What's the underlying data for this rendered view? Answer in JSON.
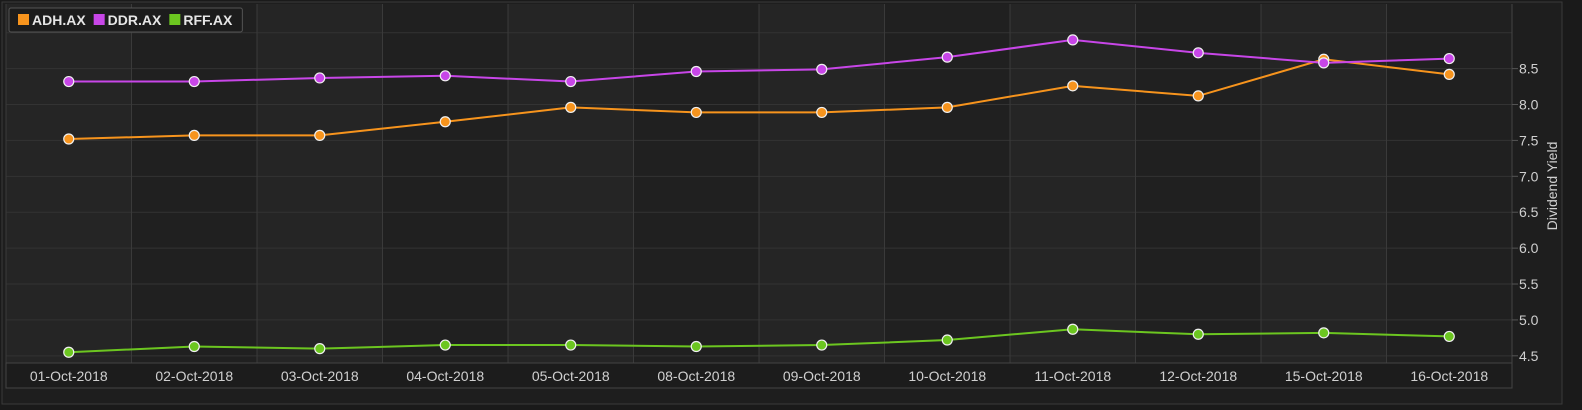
{
  "chart_data": {
    "type": "line",
    "title": "",
    "xlabel": "",
    "ylabel": "Dividend Yield",
    "categories": [
      "01-Oct-2018",
      "02-Oct-2018",
      "03-Oct-2018",
      "04-Oct-2018",
      "05-Oct-2018",
      "08-Oct-2018",
      "09-Oct-2018",
      "10-Oct-2018",
      "11-Oct-2018",
      "12-Oct-2018",
      "15-Oct-2018",
      "16-Oct-2018"
    ],
    "ylim": [
      4.4,
      9.4
    ],
    "yticks": [
      "4.5",
      "5.0",
      "5.5",
      "6.0",
      "6.5",
      "7.0",
      "7.5",
      "8.0",
      "8.5"
    ],
    "grid": true,
    "legend_position": "top-left",
    "series": [
      {
        "name": "ADH.AX",
        "color": "#f7941d",
        "values": [
          7.52,
          7.57,
          7.57,
          7.76,
          7.96,
          7.89,
          7.89,
          7.96,
          8.26,
          8.12,
          8.63,
          8.42
        ]
      },
      {
        "name": "DDR.AX",
        "color": "#c846e8",
        "values": [
          8.32,
          8.32,
          8.37,
          8.4,
          8.32,
          8.46,
          8.49,
          8.66,
          8.9,
          8.72,
          8.58,
          8.64
        ]
      },
      {
        "name": "RFF.AX",
        "color": "#6cc620",
        "values": [
          4.55,
          4.63,
          4.6,
          4.65,
          4.65,
          4.63,
          4.65,
          4.72,
          4.87,
          4.8,
          4.82,
          4.77
        ]
      }
    ]
  }
}
